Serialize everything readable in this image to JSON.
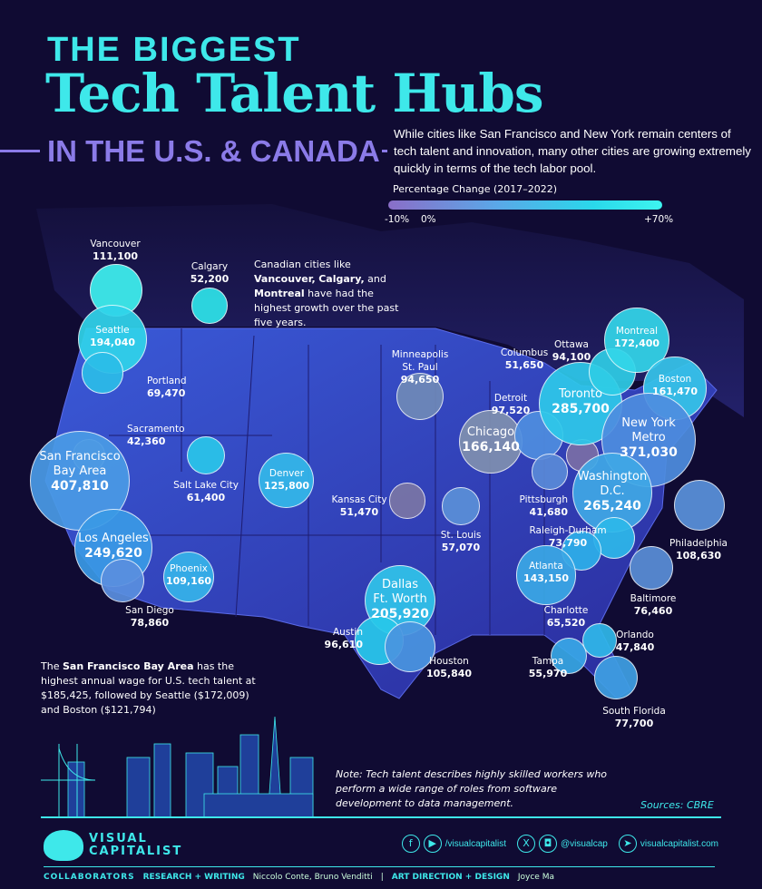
{
  "header": {
    "kicker": "THE BIGGEST",
    "title": "Tech Talent Hubs",
    "subtitle": "IN THE U.S. & CANADA",
    "description": "While cities like San Francisco and New York remain centers of tech talent and innovation, many other cities are growing extremely quickly in terms of the tech labor pool."
  },
  "legend": {
    "title": "Percentage Change (2017–2022)",
    "min_label": "-10%",
    "zero_label": "0%",
    "max_label": "+70%",
    "colors": [
      "#8a6ec8",
      "#5aa8e8",
      "#2ad8ea",
      "#3ef4f0"
    ]
  },
  "annotations": {
    "canada": [
      "Canadian cities like ",
      "Vancouver,",
      "Calgary,",
      " and ",
      "Montreal",
      " have had the highest growth over the past five years."
    ],
    "wage": [
      "The ",
      "San Francisco Bay Area",
      " has the highest annual wage for U.S. tech talent at $185,425, followed by Seattle ($172,009) and Boston ($121,794)"
    ],
    "note": "Note: Tech talent describes highly skilled workers who perform a wide range of roles from software development to data management.",
    "sources": "Sources: CBRE"
  },
  "cities": [
    {
      "name": "Vancouver",
      "value": "111,100",
      "n": 111100,
      "color": "#3ef2f0"
    },
    {
      "name": "Calgary",
      "value": "52,200",
      "n": 52200,
      "color": "#2ee4ea"
    },
    {
      "name": "Seattle",
      "value": "194,040",
      "n": 194040,
      "color": "#30d4ea"
    },
    {
      "name": "Portland",
      "value": "69,470",
      "n": 69470,
      "color": "#2bbde8"
    },
    {
      "name": "Sacramento",
      "value": "42,360",
      "n": 42360,
      "color": "#7088c0"
    },
    {
      "name": "San Francisco Bay Area",
      "value": "407,810",
      "n": 407810,
      "color": "#4a9be6"
    },
    {
      "name": "Salt Lake City",
      "value": "61,400",
      "n": 61400,
      "color": "#2ac6ea"
    },
    {
      "name": "Denver",
      "value": "125,800",
      "n": 125800,
      "color": "#33b8ea"
    },
    {
      "name": "Los Angeles",
      "value": "249,620",
      "n": 249620,
      "color": "#3a9ae6"
    },
    {
      "name": "San Diego",
      "value": "78,860",
      "n": 78860,
      "color": "#5a8fdf"
    },
    {
      "name": "Phoenix",
      "value": "109,160",
      "n": 109160,
      "color": "#36b3ea"
    },
    {
      "name": "Kansas City",
      "value": "51,470",
      "n": 51470,
      "color": "#7a76a6"
    },
    {
      "name": "Minneapolis St. Paul",
      "value": "94,650",
      "n": 94650,
      "color": "#6f8ab8"
    },
    {
      "name": "St. Louis",
      "value": "57,070",
      "n": 57070,
      "color": "#5b90d8"
    },
    {
      "name": "Chicago",
      "value": "166,140",
      "n": 166140,
      "color": "#8090b0"
    },
    {
      "name": "Detroit",
      "value": "97,520",
      "n": 97520,
      "color": "#4f8ee0"
    },
    {
      "name": "Columbus",
      "value": "51,650",
      "n": 51650,
      "color": "#5a8ad8"
    },
    {
      "name": "Pittsburgh",
      "value": "41,680",
      "n": 41680,
      "color": "#7a6ea6"
    },
    {
      "name": "Toronto",
      "value": "285,700",
      "n": 285700,
      "color": "#2ec9ea"
    },
    {
      "name": "Ottawa",
      "value": "94,100",
      "n": 94100,
      "color": "#2fcde6"
    },
    {
      "name": "Montreal",
      "value": "172,400",
      "n": 172400,
      "color": "#33d6ea"
    },
    {
      "name": "Boston",
      "value": "161,470",
      "n": 161470,
      "color": "#36c5ea"
    },
    {
      "name": "New York Metro",
      "value": "371,030",
      "n": 371030,
      "color": "#4e8ee0"
    },
    {
      "name": "Washington D.C.",
      "value": "265,240",
      "n": 265240,
      "color": "#40a8e6"
    },
    {
      "name": "Philadelphia",
      "value": "108,630",
      "n": 108630,
      "color": "#5a92dc"
    },
    {
      "name": "Baltimore",
      "value": "76,460",
      "n": 76460,
      "color": "#5a8fd8"
    },
    {
      "name": "Raleigh-Durham",
      "value": "73,790",
      "n": 73790,
      "color": "#2db8ea"
    },
    {
      "name": "Charlotte",
      "value": "65,520",
      "n": 65520,
      "color": "#2db0ea"
    },
    {
      "name": "Atlanta",
      "value": "143,150",
      "n": 143150,
      "color": "#3aa8e6"
    },
    {
      "name": "Dallas Ft. Worth",
      "value": "205,920",
      "n": 205920,
      "color": "#30c4ea"
    },
    {
      "name": "Austin",
      "value": "96,610",
      "n": 96610,
      "color": "#28c8ea"
    },
    {
      "name": "Houston",
      "value": "105,840",
      "n": 105840,
      "color": "#4a95e0"
    },
    {
      "name": "Orlando",
      "value": "47,840",
      "n": 47840,
      "color": "#30b8ea"
    },
    {
      "name": "Tampa",
      "value": "55,970",
      "n": 55970,
      "color": "#38a8e8"
    },
    {
      "name": "South Florida",
      "value": "77,700",
      "n": 77700,
      "color": "#3fa0e4"
    }
  ],
  "footer": {
    "brand_line1": "VISUAL",
    "brand_line2": "CAPITALIST",
    "social1": "/visualcapitalist",
    "social2": "@visualcap",
    "website": "visualcapitalist.com",
    "collaborators": "COLLABORATORS",
    "research_label": "RESEARCH + WRITING",
    "research_names": "Niccolo Conte, Bruno Venditti",
    "sep": "|",
    "art_label": "ART DIRECTION + DESIGN",
    "art_names": "Joyce Ma"
  }
}
